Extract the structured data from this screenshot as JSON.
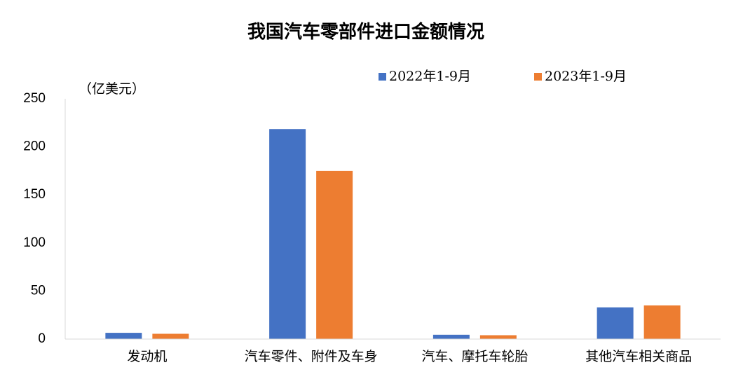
{
  "chart_data": {
    "type": "bar",
    "title": "我国汽车零部件进口金额情况",
    "y_axis_label": "（亿美元）",
    "categories": [
      "发动机",
      "汽车零件、附件及车身",
      "汽车、摩托车轮胎",
      "其他汽车相关商品"
    ],
    "series": [
      {
        "name": "2022年1-9月",
        "color": "#4472c4",
        "values": [
          6.5,
          218.5,
          4.5,
          33
        ]
      },
      {
        "name": "2023年1-9月",
        "color": "#ed7d31",
        "values": [
          5.5,
          175,
          4,
          35
        ]
      }
    ],
    "ylim": [
      0,
      250
    ],
    "yticks": [
      0,
      50,
      100,
      150,
      200,
      250
    ],
    "grid": false,
    "legend": "top"
  }
}
